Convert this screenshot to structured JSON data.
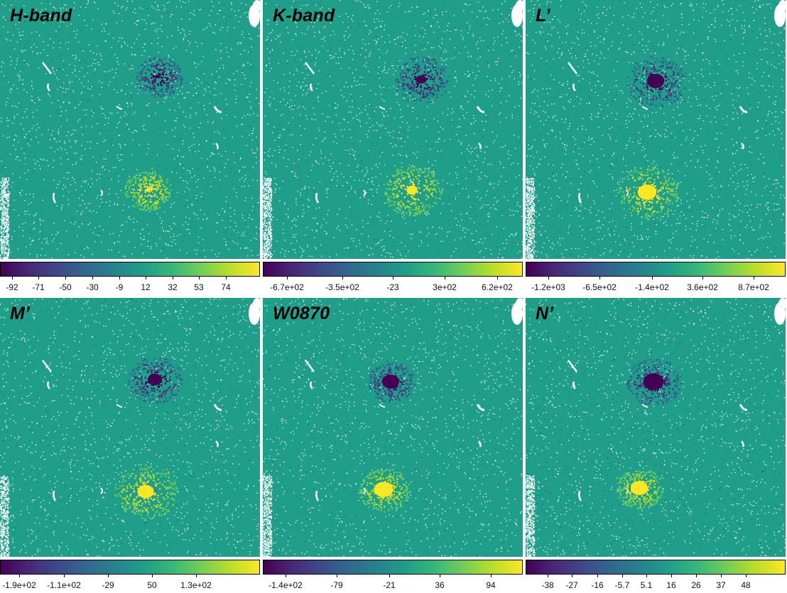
{
  "figure": {
    "panels": [
      {
        "label": "H-band",
        "colorbar_ticks": [
          "-92",
          "-71",
          "-50",
          "-30",
          "-9",
          "12",
          "32",
          "53",
          "74"
        ]
      },
      {
        "label": "K-band",
        "colorbar_ticks": [
          "-6.7e+02",
          "-3.5e+02",
          "-23",
          "3e+02",
          "6.2e+02"
        ]
      },
      {
        "label": "L’",
        "colorbar_ticks": [
          "-1.2e+03",
          "-6.5e+02",
          "-1.4e+02",
          "3.6e+02",
          "8.7e+02"
        ]
      },
      {
        "label": "M’",
        "colorbar_ticks": [
          "-1.9e+02",
          "-1.1e+02",
          "-29",
          "50",
          "1.3e+02"
        ]
      },
      {
        "label": "W0870",
        "colorbar_ticks": [
          "-1.4e+02",
          "-79",
          "-21",
          "36",
          "94"
        ]
      },
      {
        "label": "N’",
        "colorbar_ticks": [
          "-38",
          "-27",
          "-16",
          "-5.7",
          "5.1",
          "16",
          "26",
          "37",
          "48"
        ]
      }
    ],
    "colormap": "viridis",
    "colors": {
      "background": "#1f9e89",
      "negative_blob": "#440154",
      "positive_blob": "#fde725"
    }
  }
}
